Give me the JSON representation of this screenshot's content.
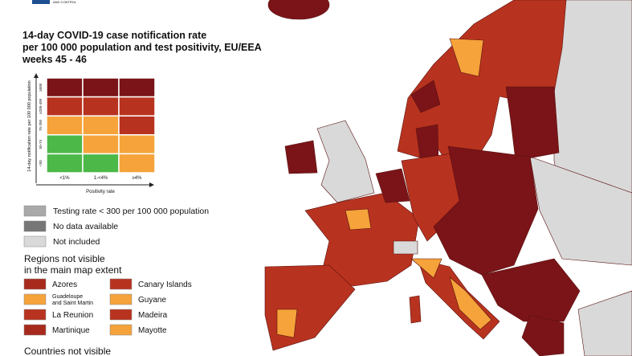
{
  "logo_text": "AND CONTROL",
  "title": [
    "14-day COVID-19 case notification rate",
    "per 100 000 population and test positivity, EU/EEA",
    "weeks 45 - 46"
  ],
  "matrix": {
    "y_label": "14-day notification rate per 100 000 population",
    "row_labels": [
      "≥500",
      "≥200-499",
      "75-200",
      "50-74",
      "<50"
    ],
    "col_labels": [
      "<1%",
      "1-<4%",
      "≥4%"
    ],
    "x_label": "Positivity rate",
    "rows": [
      [
        "#7a1418",
        "#7a1418",
        "#7a1418"
      ],
      [
        "#b8331f",
        "#b8331f",
        "#b8331f"
      ],
      [
        "#f5a33a",
        "#f5a33a",
        "#b8331f"
      ],
      [
        "#4cb848",
        "#f5a33a",
        "#f5a33a"
      ],
      [
        "#4cb848",
        "#4cb848",
        "#f5a33a"
      ]
    ]
  },
  "legend": [
    {
      "label": "Testing rate < 300 per 100 000 population",
      "color": "#a9a9a9"
    },
    {
      "label": "No data available",
      "color": "#767676"
    },
    {
      "label": "Not included",
      "color": "#d9d9d9"
    }
  ],
  "regions_title": [
    "Regions not visible",
    "in the main map extent"
  ],
  "regions": [
    {
      "name": [
        "Azores"
      ],
      "color": "#a82a1c"
    },
    {
      "name": [
        "Guadeloupe",
        "and Saint Martin"
      ],
      "color": "#f5a33a"
    },
    {
      "name": [
        "La Reunion"
      ],
      "color": "#b8331f"
    },
    {
      "name": [
        "Martinique"
      ],
      "color": "#a82a1c"
    },
    {
      "name": [
        "Canary Islands"
      ],
      "color": "#b8331f"
    },
    {
      "name": [
        "Guyane"
      ],
      "color": "#f5a33a"
    },
    {
      "name": [
        "Madeira"
      ],
      "color": "#b8331f"
    },
    {
      "name": [
        "Mayotte"
      ],
      "color": "#f5a33a"
    }
  ],
  "countries_title": "Countries not visible"
}
